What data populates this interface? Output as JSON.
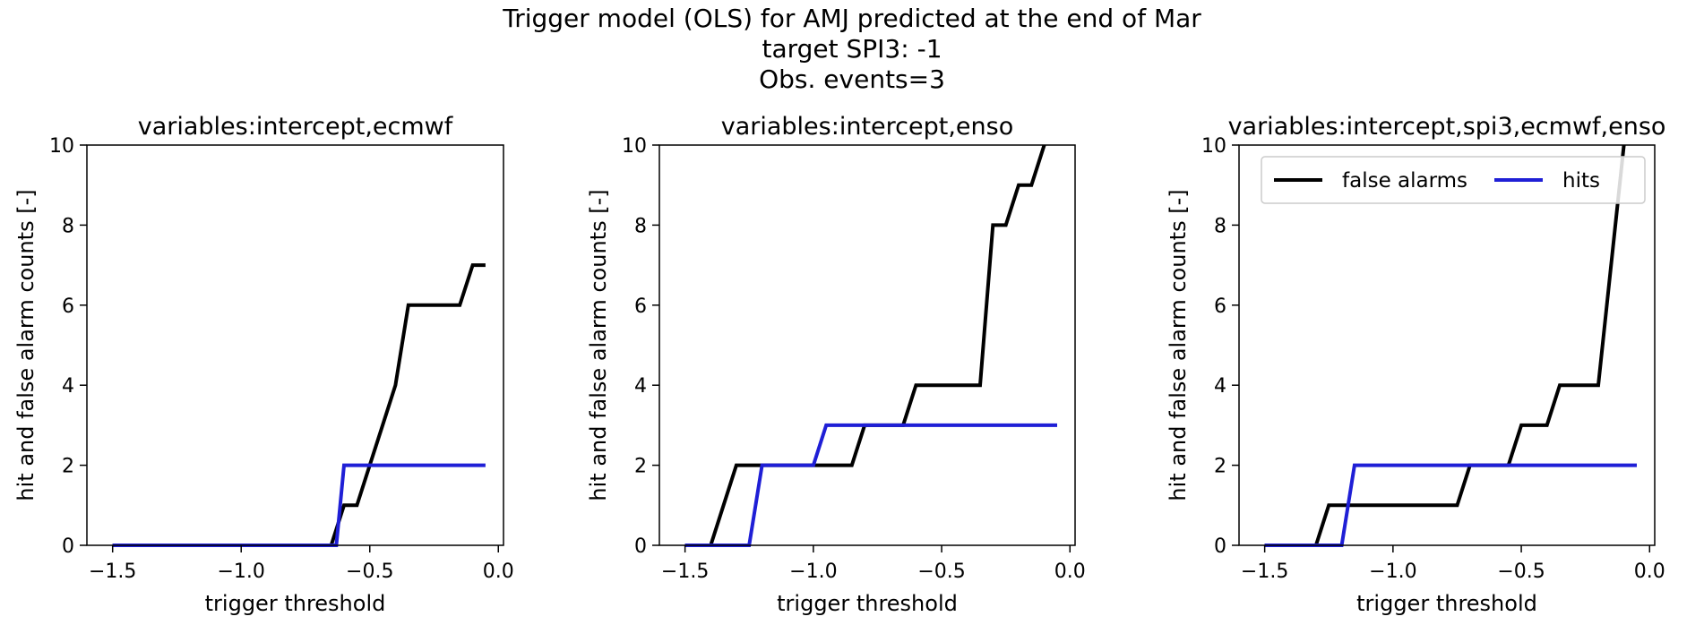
{
  "suptitle": [
    "Trigger model (OLS) for AMJ predicted at the end of Mar",
    "target SPI3: -1",
    "Obs. events=3"
  ],
  "colors": {
    "false_alarms": "#000000",
    "hits": "#1f1fd6"
  },
  "chart_data": [
    {
      "type": "line",
      "title": "variables:intercept,ecmwf",
      "xlabel": "trigger threshold",
      "ylabel": "hit and false alarm counts [-]",
      "xlim": [
        -1.6,
        0.02
      ],
      "ylim": [
        0,
        10
      ],
      "xticks": [
        -1.5,
        -1.0,
        -0.5,
        0.0
      ],
      "xtick_labels": [
        "−1.5",
        "−1.0",
        "−0.5",
        "0.0"
      ],
      "yticks": [
        0,
        2,
        4,
        6,
        8,
        10
      ],
      "ytick_labels": [
        "0",
        "2",
        "4",
        "6",
        "8",
        "10"
      ],
      "legend": null,
      "series": [
        {
          "key": "false_alarms",
          "points": [
            [
              -1.5,
              0
            ],
            [
              -0.65,
              0
            ],
            [
              -0.6,
              1
            ],
            [
              -0.55,
              1
            ],
            [
              -0.5,
              2
            ],
            [
              -0.45,
              3
            ],
            [
              -0.4,
              4
            ],
            [
              -0.35,
              6
            ],
            [
              -0.15,
              6
            ],
            [
              -0.1,
              7
            ],
            [
              -0.05,
              7
            ]
          ]
        },
        {
          "key": "hits",
          "points": [
            [
              -1.5,
              0
            ],
            [
              -0.63,
              0
            ],
            [
              -0.6,
              2
            ],
            [
              -0.05,
              2
            ]
          ]
        }
      ]
    },
    {
      "type": "line",
      "title": "variables:intercept,enso",
      "xlabel": "trigger threshold",
      "ylabel": "hit and false alarm counts [-]",
      "xlim": [
        -1.6,
        0.02
      ],
      "ylim": [
        0,
        10
      ],
      "xticks": [
        -1.5,
        -1.0,
        -0.5,
        0.0
      ],
      "xtick_labels": [
        "−1.5",
        "−1.0",
        "−0.5",
        "0.0"
      ],
      "yticks": [
        0,
        2,
        4,
        6,
        8,
        10
      ],
      "ytick_labels": [
        "0",
        "2",
        "4",
        "6",
        "8",
        "10"
      ],
      "legend": null,
      "series": [
        {
          "key": "false_alarms",
          "points": [
            [
              -1.5,
              0
            ],
            [
              -1.4,
              0
            ],
            [
              -1.3,
              2
            ],
            [
              -0.85,
              2
            ],
            [
              -0.8,
              3
            ],
            [
              -0.65,
              3
            ],
            [
              -0.6,
              4
            ],
            [
              -0.35,
              4
            ],
            [
              -0.3,
              8
            ],
            [
              -0.25,
              8
            ],
            [
              -0.2,
              9
            ],
            [
              -0.15,
              9
            ],
            [
              -0.1,
              10
            ]
          ]
        },
        {
          "key": "hits",
          "points": [
            [
              -1.5,
              0
            ],
            [
              -1.25,
              0
            ],
            [
              -1.2,
              2
            ],
            [
              -1.0,
              2
            ],
            [
              -0.95,
              3
            ],
            [
              -0.05,
              3
            ]
          ]
        }
      ]
    },
    {
      "type": "line",
      "title": "variables:intercept,spi3,ecmwf,enso",
      "xlabel": "trigger threshold",
      "ylabel": "hit and false alarm counts [-]",
      "xlim": [
        -1.6,
        0.02
      ],
      "ylim": [
        0,
        10
      ],
      "xticks": [
        -1.5,
        -1.0,
        -0.5,
        0.0
      ],
      "xtick_labels": [
        "−1.5",
        "−1.0",
        "−0.5",
        "0.0"
      ],
      "yticks": [
        0,
        2,
        4,
        6,
        8,
        10
      ],
      "ytick_labels": [
        "0",
        "2",
        "4",
        "6",
        "8",
        "10"
      ],
      "legend": {
        "position": "upper right",
        "entries": [
          "false alarms",
          "hits"
        ]
      },
      "series": [
        {
          "key": "false_alarms",
          "points": [
            [
              -1.5,
              0
            ],
            [
              -1.3,
              0
            ],
            [
              -1.25,
              1
            ],
            [
              -0.75,
              1
            ],
            [
              -0.7,
              2
            ],
            [
              -0.55,
              2
            ],
            [
              -0.5,
              3
            ],
            [
              -0.4,
              3
            ],
            [
              -0.35,
              4
            ],
            [
              -0.2,
              4
            ],
            [
              -0.15,
              7
            ],
            [
              -0.1,
              10
            ]
          ]
        },
        {
          "key": "hits",
          "points": [
            [
              -1.5,
              0
            ],
            [
              -1.2,
              0
            ],
            [
              -1.15,
              2
            ],
            [
              -0.05,
              2
            ]
          ]
        }
      ]
    }
  ]
}
